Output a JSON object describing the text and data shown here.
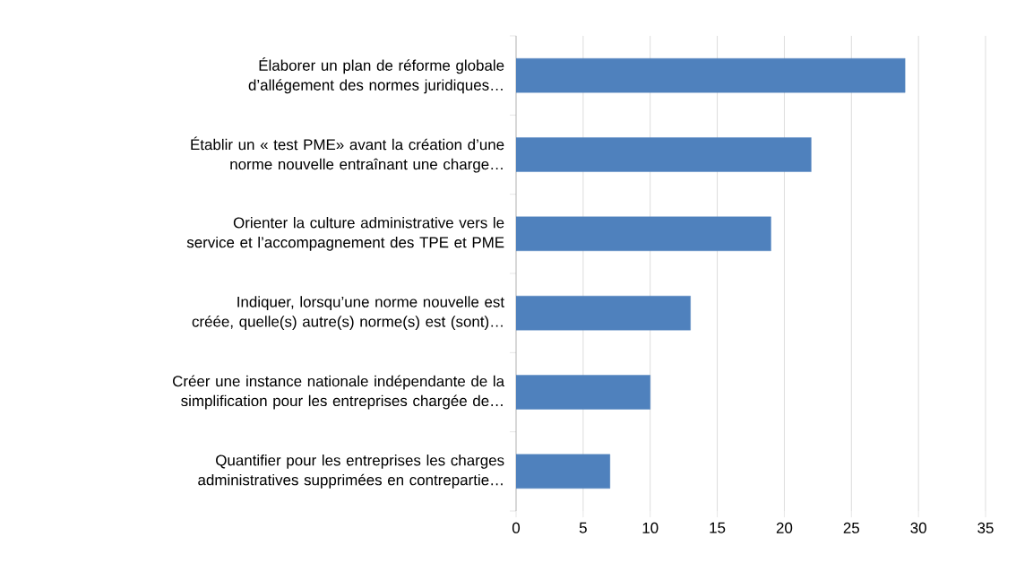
{
  "chart_data": {
    "type": "bar",
    "orientation": "horizontal",
    "categories": [
      "Élaborer un plan de réforme globale d’allégement des normes juridiques…",
      "Établir un « test PME» avant la création d’une norme nouvelle entraînant une charge…",
      "Orienter la culture administrative vers le service et l’accompagnement des TPE et PME",
      "Indiquer, lorsqu’une norme nouvelle est créée, quelle(s) autre(s) norme(s) est (sont)…",
      "Créer une instance nationale indépendante de la simplification pour les entreprises chargée de…",
      "Quantifier pour les entreprises les charges administratives supprimées en contrepartie…"
    ],
    "values": [
      29,
      22,
      19,
      13,
      10,
      7
    ],
    "color": "#4f81bd",
    "xlim": [
      0,
      35
    ],
    "xticks": [
      0,
      5,
      10,
      15,
      20,
      25,
      30,
      35
    ],
    "grid": "x"
  }
}
